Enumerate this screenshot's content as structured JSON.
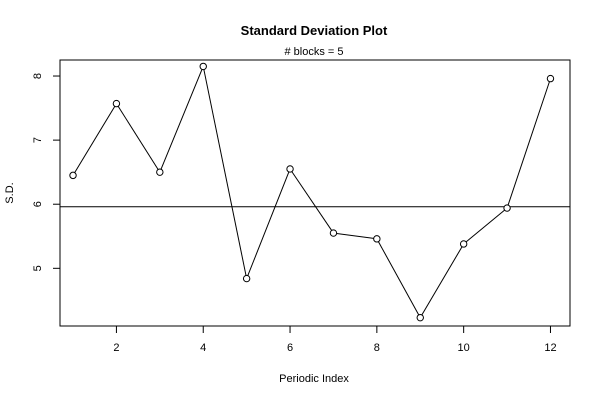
{
  "chart_data": {
    "type": "line",
    "title": "Standard Deviation Plot",
    "subtitle": "# blocks =  5",
    "xlabel": "Periodic Index",
    "ylabel": "S.D.",
    "xlim": [
      0.7,
      12.45
    ],
    "ylim": [
      4.1,
      8.25
    ],
    "x_ticks": [
      2,
      4,
      6,
      8,
      10,
      12
    ],
    "y_ticks": [
      5,
      6,
      7,
      8
    ],
    "series": [
      {
        "x": [
          1,
          2,
          3,
          4,
          5,
          6,
          7,
          8,
          9,
          10,
          11,
          12
        ],
        "values": [
          6.45,
          7.57,
          6.5,
          8.15,
          4.84,
          6.55,
          5.55,
          5.46,
          4.23,
          5.38,
          5.94,
          7.96
        ],
        "marker": "open-circle",
        "color": "#000000"
      }
    ],
    "reference_line": {
      "y": 5.96,
      "orientation": "horizontal",
      "color": "#000000"
    },
    "grid": false,
    "legend": "none"
  }
}
